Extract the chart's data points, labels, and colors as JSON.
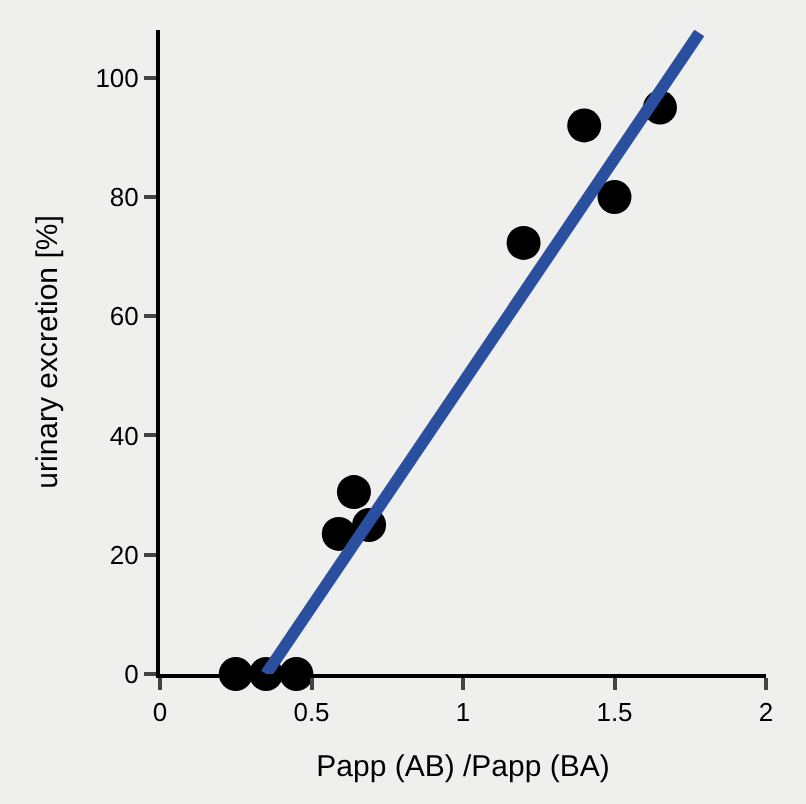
{
  "chart_data": {
    "type": "scatter",
    "xlabel": "Papp (AB) /Papp (BA)",
    "ylabel": "urinary excretion [%]",
    "xlim": [
      0,
      2
    ],
    "ylim": [
      0,
      108
    ],
    "xticks": [
      0,
      0.5,
      1,
      1.5,
      2
    ],
    "yticks": [
      0,
      20,
      40,
      60,
      80,
      100
    ],
    "grid": false,
    "series": [
      {
        "marker": "circle",
        "color": "#000000",
        "x": [
          0.25,
          0.35,
          0.45,
          0.59,
          0.64,
          0.69,
          1.2,
          1.4,
          1.5,
          1.65
        ],
        "values": [
          0,
          0,
          0,
          23.5,
          30.5,
          25,
          72.3,
          92,
          80,
          95
        ]
      },
      {
        "type": "line",
        "color": "#2a4f9e",
        "line_style": "solid",
        "x": [
          0.35,
          1.78
        ],
        "values": [
          0,
          107.5
        ]
      }
    ]
  }
}
